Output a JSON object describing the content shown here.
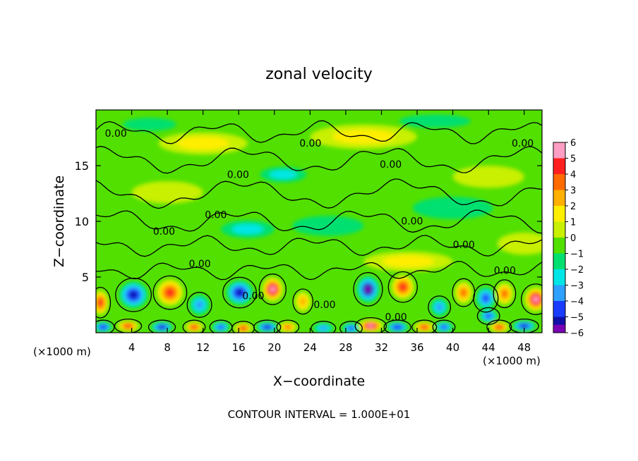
{
  "chart_data": {
    "type": "heatmap",
    "title": "zonal velocity",
    "xlabel": "X−coordinate",
    "ylabel": "Z−coordinate",
    "x_unit_left": "(×1000 m)",
    "x_unit_right": "(×1000 m)",
    "footer": "CONTOUR INTERVAL = 1.000E+01",
    "xlim": [
      0,
      50
    ],
    "ylim": [
      0,
      20
    ],
    "x_ticks": [
      "4",
      "8",
      "12",
      "16",
      "20",
      "24",
      "28",
      "32",
      "36",
      "40",
      "44",
      "48"
    ],
    "x_tick_values": [
      4,
      8,
      12,
      16,
      20,
      24,
      28,
      32,
      36,
      40,
      44,
      48
    ],
    "y_ticks": [
      "5",
      "10",
      "15"
    ],
    "y_tick_values": [
      5,
      10,
      15
    ],
    "colorbar": {
      "labels": [
        "6",
        "5",
        "4",
        "3",
        "2",
        "1",
        "0",
        "−1",
        "−2",
        "−3",
        "−4",
        "−5",
        "−6"
      ],
      "values": [
        6,
        5,
        4,
        3,
        2,
        1,
        0,
        -1,
        -2,
        -3,
        -4,
        -5,
        -6
      ],
      "range": [
        -6,
        6
      ],
      "colors": [
        "#ff9ec4",
        "#ff1f1f",
        "#ff6a00",
        "#ffb000",
        "#ffee00",
        "#c8f000",
        "#52e000",
        "#00e070",
        "#00e6e6",
        "#2ea0ff",
        "#1a3cff",
        "#1010a8",
        "#7a00b4"
      ]
    },
    "contour_level": "0.00",
    "contour_labels": [
      {
        "text": "0.00",
        "x": 1.0,
        "z": 17.6
      },
      {
        "text": "0.00",
        "x": 22.8,
        "z": 16.7
      },
      {
        "text": "0.00",
        "x": 31.8,
        "z": 14.8
      },
      {
        "text": "0.00",
        "x": 46.6,
        "z": 16.7
      },
      {
        "text": "0.00",
        "x": 14.7,
        "z": 13.9
      },
      {
        "text": "0.00",
        "x": 12.2,
        "z": 10.3
      },
      {
        "text": "0.00",
        "x": 6.4,
        "z": 8.8
      },
      {
        "text": "0.00",
        "x": 34.2,
        "z": 9.7
      },
      {
        "text": "0.00",
        "x": 40.0,
        "z": 7.6
      },
      {
        "text": "0.00",
        "x": 10.4,
        "z": 5.9
      },
      {
        "text": "0.00",
        "x": 44.6,
        "z": 5.3
      },
      {
        "text": "0.00",
        "x": 16.4,
        "z": 3.0
      },
      {
        "text": "0.00",
        "x": 24.4,
        "z": 2.2
      },
      {
        "text": "0.00",
        "x": 32.4,
        "z": 1.1
      }
    ],
    "eddies": [
      {
        "x": 0.5,
        "z": 2.7,
        "v": 4.5,
        "rx": 0.9,
        "rz": 1.1
      },
      {
        "x": 4.2,
        "z": 3.4,
        "v": -5.4,
        "rx": 1.6,
        "rz": 1.2
      },
      {
        "x": 8.3,
        "z": 3.6,
        "v": 4.8,
        "rx": 1.5,
        "rz": 1.2
      },
      {
        "x": 11.6,
        "z": 2.5,
        "v": -3.0,
        "rx": 1.1,
        "rz": 0.9
      },
      {
        "x": 16.1,
        "z": 3.6,
        "v": -5.3,
        "rx": 1.5,
        "rz": 1.1
      },
      {
        "x": 19.8,
        "z": 3.9,
        "v": 6.0,
        "rx": 1.2,
        "rz": 1.1
      },
      {
        "x": 23.2,
        "z": 2.8,
        "v": 3.0,
        "rx": 0.9,
        "rz": 0.9
      },
      {
        "x": 30.5,
        "z": 3.9,
        "v": -6.0,
        "rx": 1.3,
        "rz": 1.2
      },
      {
        "x": 34.4,
        "z": 4.1,
        "v": 4.8,
        "rx": 1.3,
        "rz": 1.1
      },
      {
        "x": 38.5,
        "z": 2.3,
        "v": -2.6,
        "rx": 1.0,
        "rz": 0.8
      },
      {
        "x": 41.2,
        "z": 3.6,
        "v": 3.6,
        "rx": 1.0,
        "rz": 1.0
      },
      {
        "x": 43.7,
        "z": 3.1,
        "v": -4.0,
        "rx": 1.1,
        "rz": 1.0
      },
      {
        "x": 45.8,
        "z": 3.5,
        "v": 4.2,
        "rx": 1.0,
        "rz": 1.0
      },
      {
        "x": 49.3,
        "z": 3.0,
        "v": 6.0,
        "rx": 1.3,
        "rz": 1.1
      },
      {
        "x": 0.8,
        "z": 0.5,
        "v": -4.5,
        "rx": 1.0,
        "rz": 0.5
      },
      {
        "x": 3.6,
        "z": 0.6,
        "v": 5.0,
        "rx": 1.2,
        "rz": 0.5
      },
      {
        "x": 7.4,
        "z": 0.5,
        "v": -5.0,
        "rx": 1.2,
        "rz": 0.5
      },
      {
        "x": 11.0,
        "z": 0.5,
        "v": 4.5,
        "rx": 1.0,
        "rz": 0.5
      },
      {
        "x": 14.0,
        "z": 0.5,
        "v": -4.0,
        "rx": 1.0,
        "rz": 0.5
      },
      {
        "x": 16.5,
        "z": 0.4,
        "v": 5.0,
        "rx": 1.0,
        "rz": 0.5
      },
      {
        "x": 19.2,
        "z": 0.5,
        "v": -5.0,
        "rx": 1.2,
        "rz": 0.5
      },
      {
        "x": 21.5,
        "z": 0.5,
        "v": 4.0,
        "rx": 1.0,
        "rz": 0.5
      },
      {
        "x": 25.5,
        "z": 0.4,
        "v": -3.0,
        "rx": 1.1,
        "rz": 0.5
      },
      {
        "x": 28.6,
        "z": 0.4,
        "v": -4.0,
        "rx": 1.0,
        "rz": 0.5
      },
      {
        "x": 30.8,
        "z": 0.6,
        "v": 6.0,
        "rx": 1.4,
        "rz": 0.6
      },
      {
        "x": 33.8,
        "z": 0.5,
        "v": -4.5,
        "rx": 1.2,
        "rz": 0.5
      },
      {
        "x": 36.8,
        "z": 0.5,
        "v": 5.0,
        "rx": 1.1,
        "rz": 0.5
      },
      {
        "x": 39.0,
        "z": 0.5,
        "v": -4.0,
        "rx": 1.0,
        "rz": 0.5
      },
      {
        "x": 44.0,
        "z": 1.5,
        "v": -4.0,
        "rx": 1.0,
        "rz": 0.6
      },
      {
        "x": 45.2,
        "z": 0.5,
        "v": 5.0,
        "rx": 1.1,
        "rz": 0.5
      },
      {
        "x": 48.0,
        "z": 0.6,
        "v": -5.0,
        "rx": 1.3,
        "rz": 0.5
      }
    ],
    "bands": [
      {
        "x": 21.0,
        "z": 14.2,
        "v": -2.0,
        "rx": 2.6,
        "rz": 0.7
      },
      {
        "x": 17.0,
        "z": 9.3,
        "v": -1.8,
        "rx": 3.0,
        "rz": 0.8
      },
      {
        "x": 26.0,
        "z": 9.6,
        "v": -1.4,
        "rx": 4.0,
        "rz": 0.9
      },
      {
        "x": 40.0,
        "z": 11.2,
        "v": -1.3,
        "rx": 4.5,
        "rz": 1.0
      },
      {
        "x": 12.0,
        "z": 17.0,
        "v": 1.6,
        "rx": 5.0,
        "rz": 1.0
      },
      {
        "x": 30.0,
        "z": 17.6,
        "v": 1.5,
        "rx": 6.0,
        "rz": 1.1
      },
      {
        "x": 44.0,
        "z": 14.0,
        "v": 1.3,
        "rx": 4.0,
        "rz": 1.0
      },
      {
        "x": 8.0,
        "z": 12.6,
        "v": 1.4,
        "rx": 4.0,
        "rz": 1.0
      },
      {
        "x": 35.0,
        "z": 6.4,
        "v": 1.5,
        "rx": 5.0,
        "rz": 0.9
      },
      {
        "x": 6.0,
        "z": 18.7,
        "v": -1.0,
        "rx": 3.0,
        "rz": 0.6
      },
      {
        "x": 38.0,
        "z": 19.0,
        "v": -0.9,
        "rx": 4.0,
        "rz": 0.6
      },
      {
        "x": 48.0,
        "z": 8.0,
        "v": 1.2,
        "rx": 3.0,
        "rz": 1.0
      }
    ]
  }
}
